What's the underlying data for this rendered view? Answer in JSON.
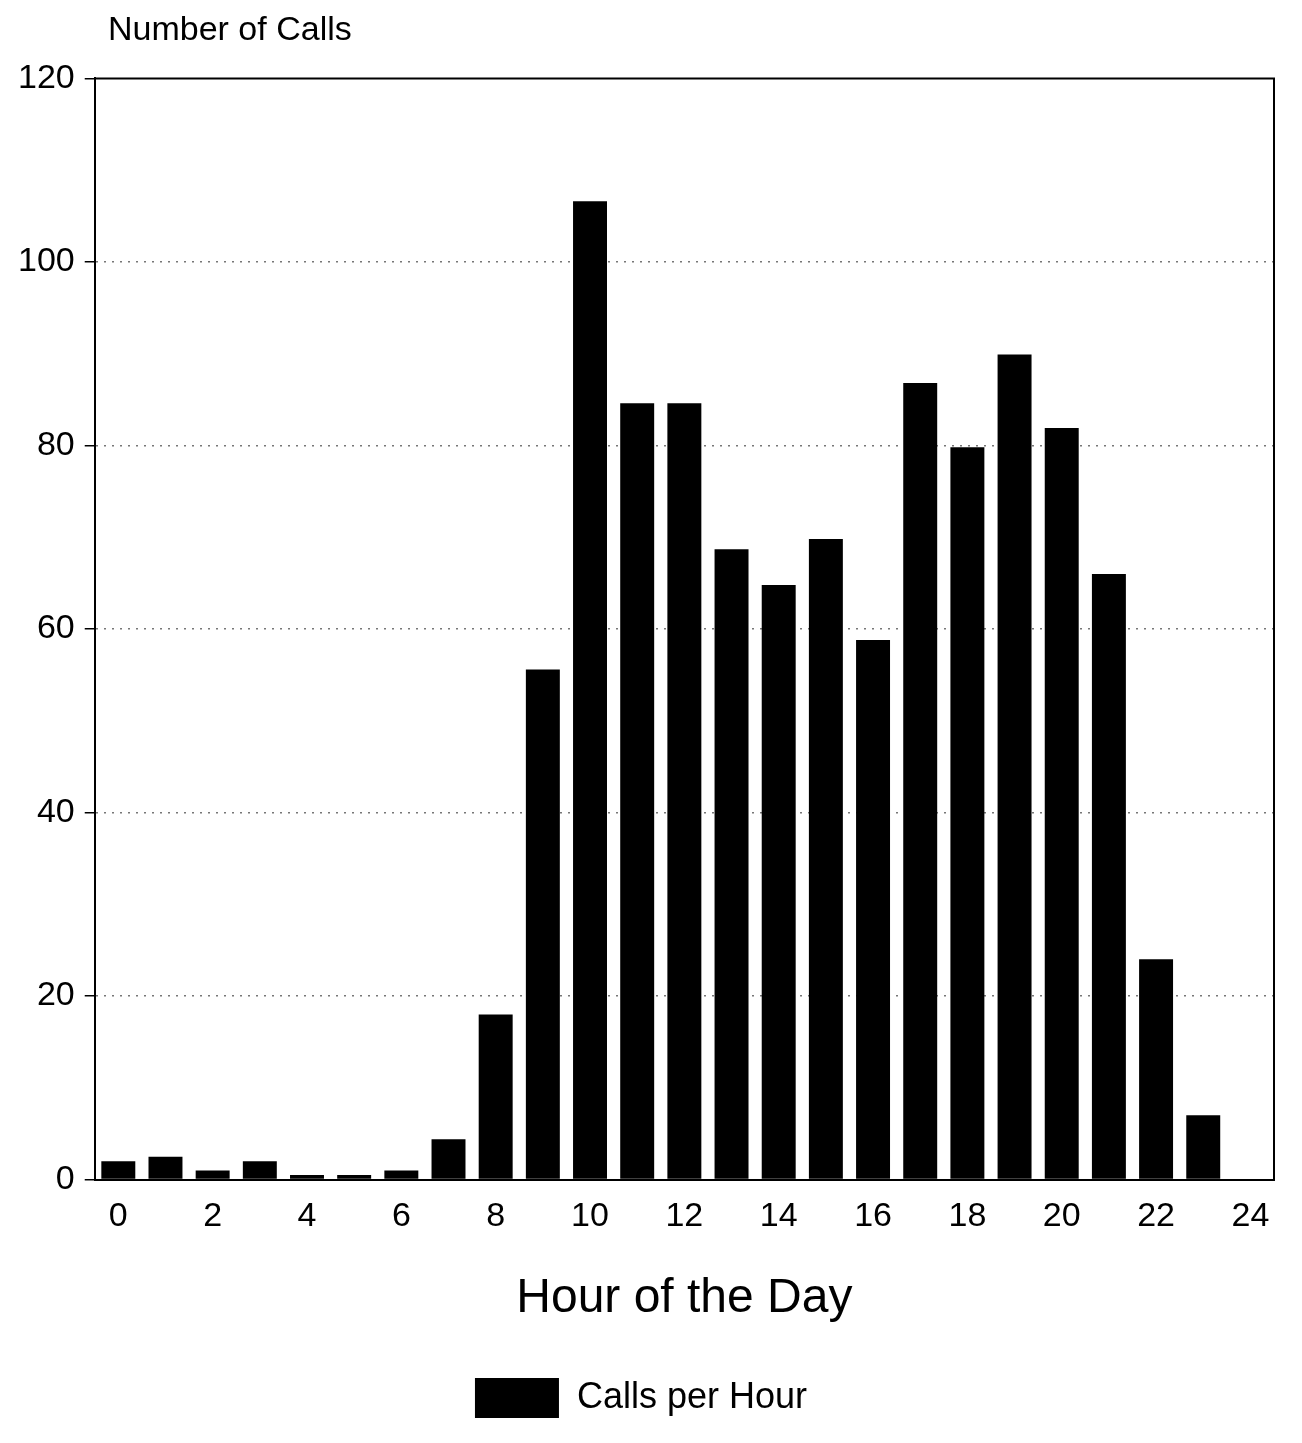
{
  "chart_data": {
    "type": "bar",
    "ylabel": "Number of Calls",
    "xlabel": "Hour of the Day",
    "x": [
      0,
      1,
      2,
      3,
      4,
      5,
      6,
      7,
      8,
      9,
      10,
      11,
      12,
      13,
      14,
      15,
      16,
      17,
      18,
      19,
      20,
      21,
      22,
      23
    ],
    "series": [
      {
        "name": "Calls per Hour",
        "color": "#000000",
        "values": [
          2,
          2.5,
          1,
          2,
          0.5,
          0.5,
          1,
          4.4,
          18,
          55.6,
          106.6,
          84.6,
          84.6,
          68.7,
          64.8,
          69.8,
          58.8,
          86.8,
          79.8,
          89.9,
          81.9,
          66,
          24,
          7
        ]
      }
    ],
    "xlim": [
      -0.5,
      24.5
    ],
    "xticks": [
      0,
      2,
      4,
      6,
      8,
      10,
      12,
      14,
      16,
      18,
      20,
      22,
      24
    ],
    "ylim": [
      0,
      120
    ],
    "yticks": [
      0,
      20,
      40,
      60,
      80,
      100,
      120
    ],
    "grid": "y",
    "legend": "bottom"
  }
}
